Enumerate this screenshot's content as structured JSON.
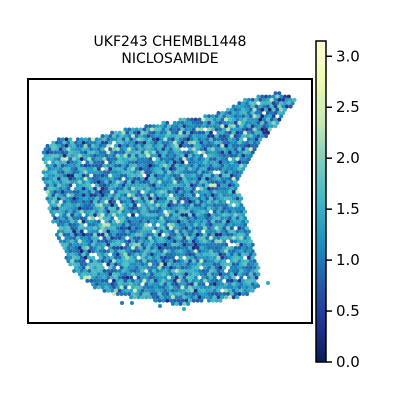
{
  "chart_data": {
    "type": "heatmap",
    "title_line1": "UKF243 CHEMBL1448",
    "title_line2": "NICLOSAMIDE",
    "xlabel": "",
    "ylabel": "",
    "colorbar": {
      "vmin": 0.0,
      "vmax": 3.15,
      "ticks": [
        0.0,
        0.5,
        1.0,
        1.5,
        2.0,
        2.5,
        3.0
      ],
      "tick_labels": [
        "0.0",
        "0.5",
        "1.0",
        "1.5",
        "2.0",
        "2.5",
        "3.0"
      ],
      "colormap": "YlGnBu",
      "colormap_stops": [
        "#081d58",
        "#253494",
        "#225ea8",
        "#1d91c0",
        "#41b6c4",
        "#7fcdbb",
        "#c7e9b4",
        "#edf8b1",
        "#ffffd9"
      ]
    },
    "spot_value_typical_range": [
      0.8,
      1.9
    ],
    "grid": false,
    "axes_ticks": false
  }
}
